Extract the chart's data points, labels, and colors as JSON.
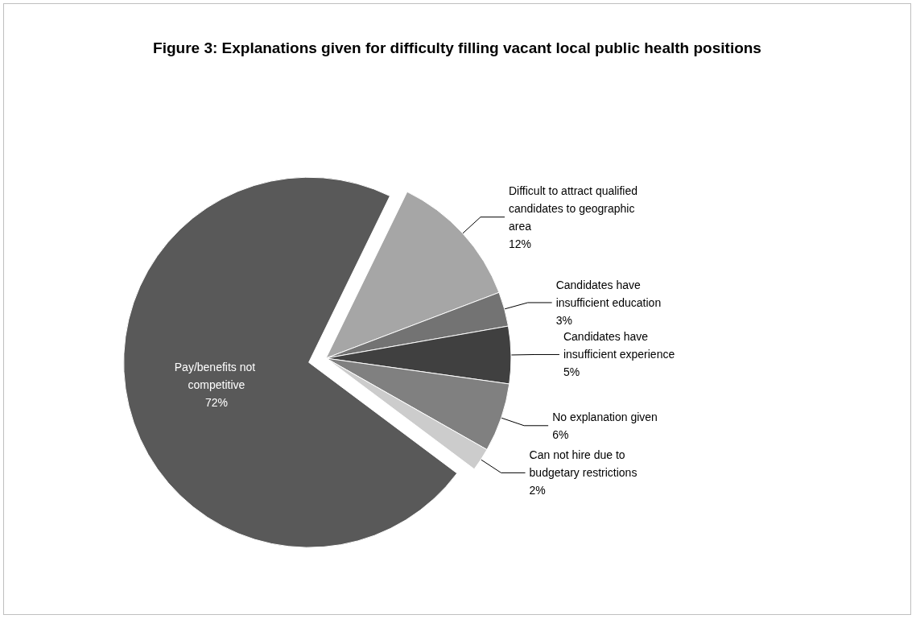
{
  "chart_data": {
    "type": "pie",
    "title": "Figure 3: Explanations given for difficulty filling vacant local public health positions",
    "categories": [
      "Difficult to attract qualified candidates to geographic area",
      "Candidates have insufficient education",
      "Candidates have insufficient experience",
      "No explanation given",
      "Can not hire due to budgetary restrictions",
      "Pay/benefits not competitive"
    ],
    "values": [
      12,
      3,
      5,
      6,
      2,
      72
    ],
    "colors": [
      "#a6a6a6",
      "#737373",
      "#404040",
      "#808080",
      "#cccccc",
      "#595959"
    ],
    "value_labels": [
      "12%",
      "3%",
      "5%",
      "6%",
      "2%",
      "72%"
    ],
    "legend": false
  }
}
